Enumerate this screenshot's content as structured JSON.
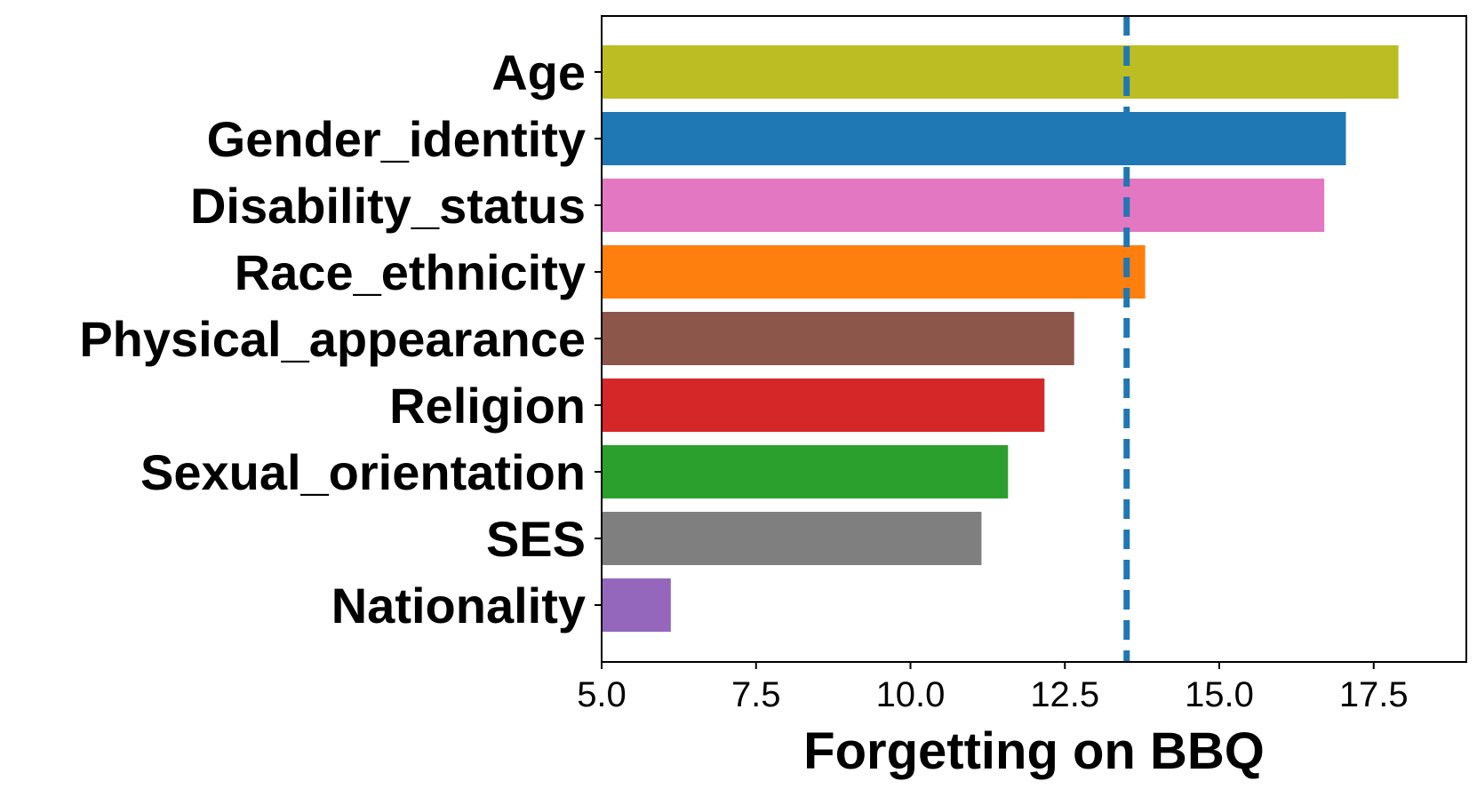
{
  "chart_data": {
    "type": "bar",
    "orientation": "horizontal",
    "title": "",
    "xlabel": "Forgetting on BBQ",
    "ylabel": "",
    "xlim": [
      5.0,
      19.0
    ],
    "xticks": [
      5.0,
      7.5,
      10.0,
      12.5,
      15.0,
      17.5
    ],
    "xtick_labels": [
      "5.0",
      "7.5",
      "10.0",
      "12.5",
      "15.0",
      "17.5"
    ],
    "categories": [
      "Age",
      "Gender_identity",
      "Disability_status",
      "Race_ethnicity",
      "Physical_appearance",
      "Religion",
      "Sexual_orientation",
      "SES",
      "Nationality"
    ],
    "values": [
      17.9,
      17.05,
      16.7,
      13.8,
      12.65,
      12.17,
      11.58,
      11.15,
      6.12
    ],
    "colors": [
      "#bcbd22",
      "#1f77b4",
      "#e377c2",
      "#ff7f0e",
      "#8c564b",
      "#d62728",
      "#2ca02c",
      "#7f7f7f",
      "#9467bd"
    ],
    "reference_line": {
      "x": 13.5,
      "style": "dashed",
      "color": "#1f77b4"
    },
    "grid": false,
    "legend": "none"
  }
}
